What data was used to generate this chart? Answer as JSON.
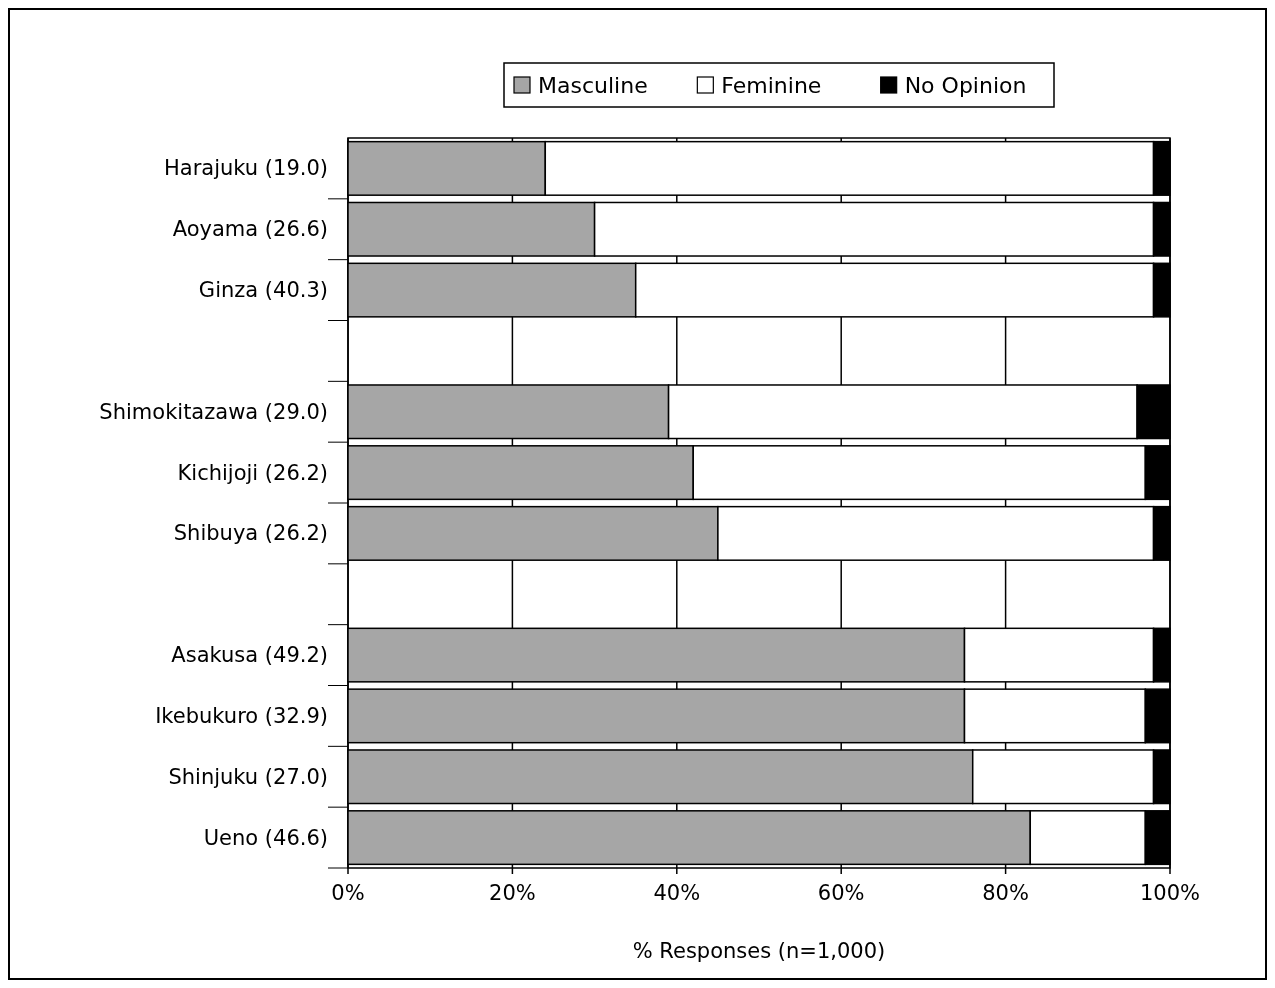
{
  "chart_data": {
    "type": "bar",
    "orientation": "horizontal",
    "stacked": true,
    "xlabel": "% Responses (n=1,000)",
    "categories": [
      "Harajuku (19.0)",
      "Aoyama (26.6)",
      "Ginza (40.3)",
      null,
      "Shimokitazawa (29.0)",
      "Kichijoji (26.2)",
      "Shibuya (26.2)",
      null,
      "Asakusa (49.2)",
      "Ikebukuro (32.9)",
      "Shinjuku (27.0)",
      "Ueno (46.6)"
    ],
    "series": [
      {
        "name": "Masculine",
        "color": "#a6a6a6",
        "values": [
          24,
          30,
          35,
          null,
          39,
          42,
          45,
          null,
          75,
          75,
          76,
          83
        ]
      },
      {
        "name": "Feminine",
        "color": "#ffffff",
        "values": [
          74,
          68,
          63,
          null,
          57,
          55,
          53,
          null,
          23,
          22,
          22,
          14
        ]
      },
      {
        "name": "No Opinion",
        "color": "#000000",
        "values": [
          2,
          2,
          2,
          null,
          4,
          3,
          2,
          null,
          2,
          3,
          2,
          3
        ]
      }
    ],
    "xlim": [
      0,
      100
    ],
    "xticks": [
      {
        "value": 0,
        "label": "0%"
      },
      {
        "value": 20,
        "label": "20%"
      },
      {
        "value": 40,
        "label": "40%"
      },
      {
        "value": 60,
        "label": "60%"
      },
      {
        "value": 80,
        "label": "80%"
      },
      {
        "value": 100,
        "label": "100%"
      }
    ],
    "grid": "x",
    "legend": "top"
  }
}
